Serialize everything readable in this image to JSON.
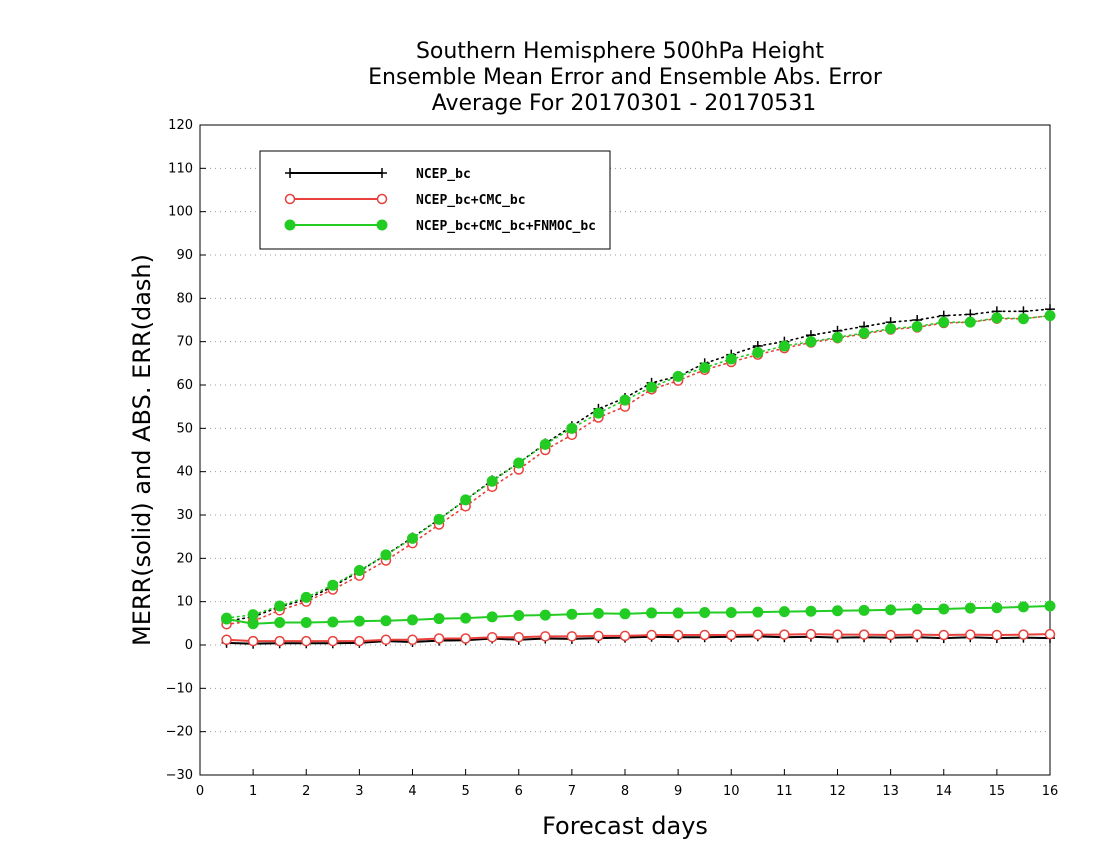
{
  "chart_data": {
    "type": "line",
    "title": [
      "Southern Hemisphere 500hPa Height",
      "Ensemble Mean Error and Ensemble Abs. Error",
      "Average For 20170301 - 20170531"
    ],
    "xlabel": "Forecast days",
    "ylabel": "MERR(solid) and ABS. ERR(dash)",
    "xlim": [
      0,
      16
    ],
    "ylim": [
      -30,
      120
    ],
    "x_ticks": [
      "0",
      "1",
      "2",
      "3",
      "4",
      "5",
      "6",
      "7",
      "8",
      "9",
      "10",
      "11",
      "12",
      "13",
      "14",
      "15",
      "16"
    ],
    "y_ticks": [
      "−30",
      "−20",
      "−10",
      "0",
      "10",
      "20",
      "30",
      "40",
      "50",
      "60",
      "70",
      "80",
      "90",
      "100",
      "110",
      "120"
    ],
    "grid": "horizontal dotted",
    "legend_position": "top-left",
    "x": [
      0.5,
      1,
      1.5,
      2,
      2.5,
      3,
      3.5,
      4,
      4.5,
      5,
      5.5,
      6,
      6.5,
      7,
      7.5,
      8,
      8.5,
      9,
      9.5,
      10,
      10.5,
      11,
      11.5,
      12,
      12.5,
      13,
      13.5,
      14,
      14.5,
      15,
      15.5,
      16
    ],
    "series": [
      {
        "name": "NCEP_bc",
        "color": "#000000",
        "marker": "plus",
        "merr": [
          0.5,
          0.3,
          0.4,
          0.4,
          0.4,
          0.5,
          0.9,
          0.7,
          1.0,
          1.1,
          1.5,
          1.2,
          1.5,
          1.4,
          1.6,
          1.7,
          1.9,
          1.8,
          1.8,
          1.9,
          2.0,
          1.8,
          1.9,
          1.7,
          1.8,
          1.7,
          1.8,
          1.6,
          1.8,
          1.6,
          1.7,
          1.6
        ],
        "abs_err": [
          5.5,
          6.5,
          8.8,
          10.5,
          13.5,
          17.0,
          20.8,
          24.8,
          29.0,
          33.5,
          38.0,
          42.0,
          46.5,
          50.5,
          54.5,
          57.0,
          60.5,
          62.0,
          65.0,
          67.0,
          69.0,
          70.0,
          71.5,
          72.5,
          73.5,
          74.5,
          75.0,
          76.0,
          76.3,
          77.0,
          77.0,
          77.5
        ]
      },
      {
        "name": "NCEP_bc+CMC_bc",
        "color": "#e8413c",
        "marker": "open-circle",
        "merr": [
          1.2,
          0.9,
          0.9,
          0.9,
          0.9,
          0.9,
          1.2,
          1.2,
          1.5,
          1.5,
          1.8,
          1.8,
          2.0,
          2.0,
          2.1,
          2.1,
          2.3,
          2.3,
          2.3,
          2.3,
          2.4,
          2.4,
          2.5,
          2.4,
          2.4,
          2.3,
          2.4,
          2.3,
          2.4,
          2.3,
          2.4,
          2.5
        ],
        "abs_err": [
          4.8,
          5.5,
          8.0,
          10.0,
          12.8,
          16.0,
          19.5,
          23.5,
          27.8,
          32.0,
          36.5,
          40.5,
          45.0,
          48.5,
          52.5,
          55.0,
          59.0,
          61.0,
          63.5,
          65.3,
          67.0,
          68.5,
          69.8,
          70.8,
          71.8,
          72.8,
          73.3,
          74.3,
          74.5,
          75.3,
          75.3,
          76.0
        ]
      },
      {
        "name": "NCEP_bc+CMC_bc+FNMOC_bc",
        "color": "#22cc22",
        "marker": "filled-circle",
        "merr": [
          6.0,
          4.9,
          5.2,
          5.2,
          5.3,
          5.5,
          5.6,
          5.8,
          6.1,
          6.2,
          6.5,
          6.8,
          6.9,
          7.1,
          7.3,
          7.2,
          7.4,
          7.4,
          7.5,
          7.5,
          7.6,
          7.7,
          7.8,
          7.9,
          8.0,
          8.1,
          8.3,
          8.3,
          8.5,
          8.6,
          8.8,
          9.0
        ],
        "abs_err": [
          6.2,
          7.0,
          9.0,
          11.0,
          13.8,
          17.2,
          20.8,
          24.6,
          29.0,
          33.5,
          37.8,
          42.0,
          46.3,
          50.0,
          53.5,
          56.5,
          59.5,
          62.0,
          64.0,
          66.0,
          67.5,
          69.0,
          70.0,
          71.0,
          72.0,
          73.0,
          73.5,
          74.5,
          74.5,
          75.5,
          75.3,
          76.0
        ]
      }
    ]
  }
}
